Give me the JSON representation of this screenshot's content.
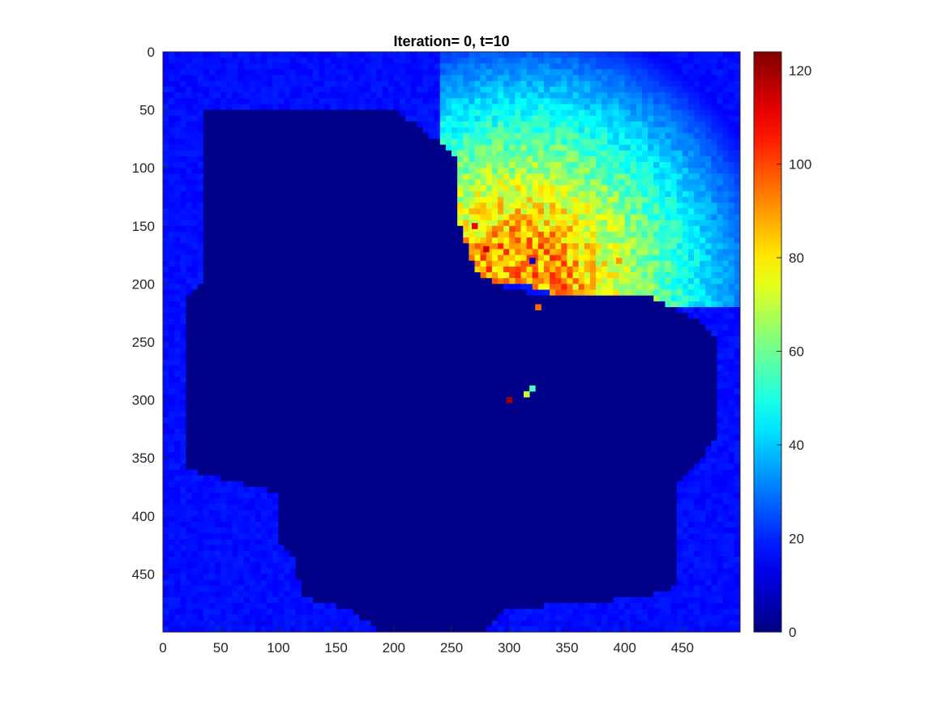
{
  "chart_data": {
    "type": "heatmap",
    "title": "Iteration= 0, t=10",
    "xlabel": "",
    "ylabel": "",
    "xlim": [
      0,
      500
    ],
    "ylim": [
      500,
      0
    ],
    "x_ticks": [
      0,
      50,
      100,
      150,
      200,
      250,
      300,
      350,
      400,
      450
    ],
    "y_ticks": [
      0,
      50,
      100,
      150,
      200,
      250,
      300,
      350,
      400,
      450
    ],
    "y_direction": "reversed",
    "colormap": "jet",
    "clim": [
      0,
      124
    ],
    "colorbar": {
      "ticks": [
        0,
        20,
        40,
        60,
        80,
        100,
        120
      ],
      "placement": "right"
    },
    "grid": false,
    "background_value": 15,
    "mask_value": 1,
    "mask_region_polygon": [
      [
        35,
        48
      ],
      [
        200,
        48
      ],
      [
        255,
        90
      ],
      [
        255,
        140
      ],
      [
        270,
        190
      ],
      [
        300,
        205
      ],
      [
        330,
        210
      ],
      [
        420,
        210
      ],
      [
        470,
        235
      ],
      [
        480,
        250
      ],
      [
        480,
        330
      ],
      [
        460,
        360
      ],
      [
        445,
        370
      ],
      [
        445,
        460
      ],
      [
        420,
        470
      ],
      [
        300,
        480
      ],
      [
        275,
        500
      ],
      [
        190,
        500
      ],
      [
        160,
        480
      ],
      [
        120,
        470
      ],
      [
        115,
        440
      ],
      [
        100,
        420
      ],
      [
        100,
        380
      ],
      [
        20,
        360
      ],
      [
        20,
        210
      ],
      [
        35,
        200
      ]
    ],
    "hot_region": {
      "center": [
        310,
        200
      ],
      "inner_radius": 95,
      "outer_radius": 230,
      "peak_value": 90
    },
    "highlighted_cells": [
      {
        "x": 300,
        "y": 300,
        "value": 120
      },
      {
        "x": 320,
        "y": 290,
        "value": 55
      },
      {
        "x": 315,
        "y": 295,
        "value": 70
      },
      {
        "x": 325,
        "y": 220,
        "value": 95
      },
      {
        "x": 270,
        "y": 150,
        "value": 110
      },
      {
        "x": 280,
        "y": 170,
        "value": 115
      },
      {
        "x": 320,
        "y": 180,
        "value": 10
      },
      {
        "x": 395,
        "y": 180,
        "value": 90
      }
    ]
  }
}
